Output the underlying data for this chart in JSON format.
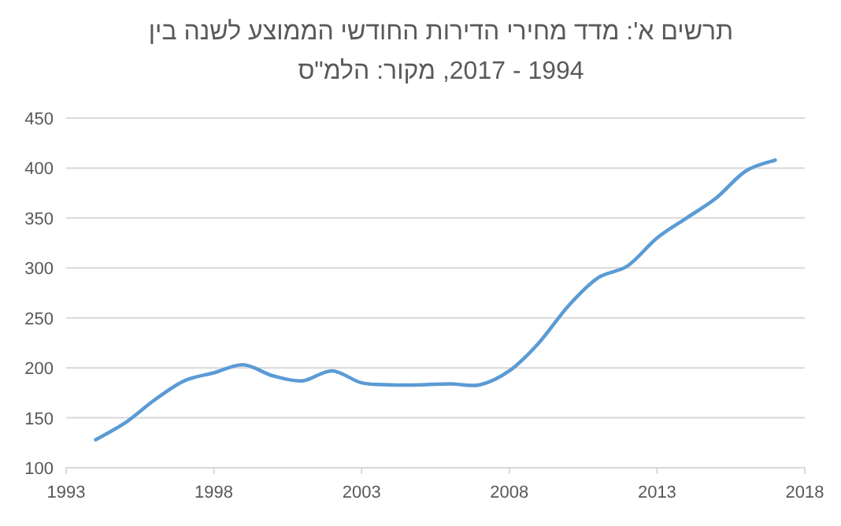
{
  "chart_data": {
    "type": "line",
    "title": "תרשים א': מדד מחירי הדירות החודשי הממוצע לשנה בין 1994 - 2017, מקור: הלמ\"ס",
    "x": [
      1994,
      1995,
      1996,
      1997,
      1998,
      1999,
      2000,
      2001,
      2002,
      2003,
      2004,
      2005,
      2006,
      2007,
      2008,
      2009,
      2010,
      2011,
      2012,
      2013,
      2014,
      2015,
      2016,
      2017
    ],
    "series": [
      {
        "color": "#5b9bd5",
        "values": [
          128,
          145,
          168,
          187,
          195,
          203,
          192,
          187,
          197,
          185,
          183,
          183,
          184,
          183,
          197,
          225,
          262,
          290,
          302,
          330,
          350,
          370,
          397,
          408
        ]
      }
    ],
    "xlim": [
      1993,
      2018
    ],
    "xticks": [
      1993,
      1998,
      2003,
      2008,
      2013,
      2018
    ],
    "ylim": [
      100,
      450
    ],
    "yticks": [
      100,
      150,
      200,
      250,
      300,
      350,
      400,
      450
    ],
    "grid": "y",
    "marker": "none",
    "line_style": "solid"
  }
}
